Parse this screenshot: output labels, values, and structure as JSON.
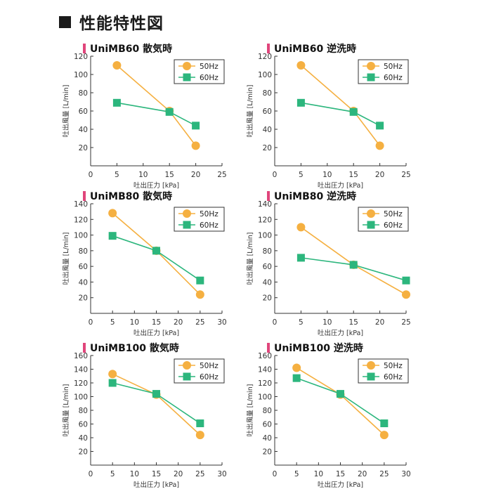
{
  "header": {
    "title": "性能特性図"
  },
  "colors": {
    "series_50hz": "#f5b041",
    "series_60hz": "#2cb67d",
    "title_mark": "#e0457b",
    "axis": "#333333"
  },
  "chart_data": [
    {
      "type": "line",
      "title": "UniMB60 散気時",
      "xlabel": "吐出圧力 [kPa]",
      "ylabel": "吐出風量 [L/min]",
      "xlim": [
        0,
        25
      ],
      "xticks": [
        0,
        5,
        10,
        15,
        20,
        25
      ],
      "ylim": [
        0,
        120
      ],
      "yticks": [
        20,
        40,
        60,
        80,
        100,
        120
      ],
      "legend": "top-right",
      "series": [
        {
          "name": "50Hz",
          "x": [
            5,
            15,
            20
          ],
          "values": [
            110,
            60,
            22
          ]
        },
        {
          "name": "60Hz",
          "x": [
            5,
            15,
            20
          ],
          "values": [
            69,
            59,
            44
          ]
        }
      ]
    },
    {
      "type": "line",
      "title": "UniMB60 逆洗時",
      "xlabel": "吐出圧力 [kPa]",
      "ylabel": "吐出風量 [L/min]",
      "xlim": [
        0,
        25
      ],
      "xticks": [
        0,
        5,
        10,
        15,
        20,
        25
      ],
      "ylim": [
        0,
        120
      ],
      "yticks": [
        20,
        40,
        60,
        80,
        100,
        120
      ],
      "legend": "top-right",
      "series": [
        {
          "name": "50Hz",
          "x": [
            5,
            15,
            20
          ],
          "values": [
            110,
            60,
            22
          ]
        },
        {
          "name": "60Hz",
          "x": [
            5,
            15,
            20
          ],
          "values": [
            69,
            59,
            44
          ]
        }
      ]
    },
    {
      "type": "line",
      "title": "UniMB80 散気時",
      "xlabel": "吐出圧力 [kPa]",
      "ylabel": "吐出風量 [L/min]",
      "xlim": [
        0,
        30
      ],
      "xticks": [
        0,
        5,
        10,
        15,
        20,
        25,
        30
      ],
      "ylim": [
        0,
        140
      ],
      "yticks": [
        20,
        40,
        60,
        80,
        100,
        120,
        140
      ],
      "legend": "top-right",
      "series": [
        {
          "name": "50Hz",
          "x": [
            5,
            15,
            25
          ],
          "values": [
            128,
            80,
            24
          ]
        },
        {
          "name": "60Hz",
          "x": [
            5,
            15,
            25
          ],
          "values": [
            99,
            80,
            42
          ]
        }
      ]
    },
    {
      "type": "line",
      "title": "UniMB80 逆洗時",
      "xlabel": "吐出圧力 [kPa]",
      "ylabel": "吐出風量 [L/min]",
      "xlim": [
        0,
        25
      ],
      "xticks": [
        0,
        5,
        10,
        15,
        20,
        25
      ],
      "ylim": [
        0,
        140
      ],
      "yticks": [
        20,
        40,
        60,
        80,
        100,
        120,
        140
      ],
      "legend": "top-right",
      "series": [
        {
          "name": "50Hz",
          "x": [
            5,
            15,
            25
          ],
          "values": [
            110,
            62,
            24
          ]
        },
        {
          "name": "60Hz",
          "x": [
            5,
            15,
            25
          ],
          "values": [
            71,
            62,
            42
          ]
        }
      ]
    },
    {
      "type": "line",
      "title": "UniMB100 散気時",
      "xlabel": "吐出圧力 [kPa]",
      "ylabel": "吐出風量 [L/min]",
      "xlim": [
        0,
        30
      ],
      "xticks": [
        0,
        5,
        10,
        15,
        20,
        25,
        30
      ],
      "ylim": [
        0,
        160
      ],
      "yticks": [
        20,
        40,
        60,
        80,
        100,
        120,
        140,
        160
      ],
      "legend": "top-right",
      "series": [
        {
          "name": "50Hz",
          "x": [
            5,
            15,
            25
          ],
          "values": [
            133,
            103,
            44
          ]
        },
        {
          "name": "60Hz",
          "x": [
            5,
            15,
            25
          ],
          "values": [
            120,
            104,
            61
          ]
        }
      ]
    },
    {
      "type": "line",
      "title": "UniMB100 逆洗時",
      "xlabel": "吐出圧力 [kPa]",
      "ylabel": "吐出風量 [L/min]",
      "xlim": [
        0,
        30
      ],
      "xticks": [
        0,
        5,
        10,
        15,
        20,
        25,
        30
      ],
      "ylim": [
        0,
        160
      ],
      "yticks": [
        20,
        40,
        60,
        80,
        100,
        120,
        140,
        160
      ],
      "legend": "top-right",
      "series": [
        {
          "name": "50Hz",
          "x": [
            5,
            15,
            25
          ],
          "values": [
            142,
            103,
            44
          ]
        },
        {
          "name": "60Hz",
          "x": [
            5,
            15,
            25
          ],
          "values": [
            127,
            104,
            61
          ]
        }
      ]
    }
  ]
}
